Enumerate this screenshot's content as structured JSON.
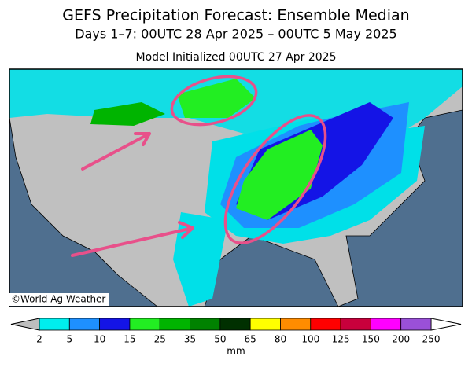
{
  "header": {
    "title": "GEFS Precipitation Forecast: Ensemble Median",
    "subtitle": "Days 1–7: 00UTC 28 Apr 2025 – 00UTC 5 May 2025",
    "initialized": "Model Initialized 00UTC 27 Apr 2025"
  },
  "map": {
    "credit": "©World Ag Weather"
  },
  "colorbar": {
    "ticks": [
      2,
      5,
      10,
      15,
      25,
      35,
      50,
      65,
      80,
      100,
      125,
      150,
      200,
      250
    ],
    "colors": [
      "#00eeee",
      "#1e90ff",
      "#1414e6",
      "#22ee22",
      "#00b400",
      "#008200",
      "#003000",
      "#ffff00",
      "#ff8c00",
      "#ff0000",
      "#c8003c",
      "#ff00ff",
      "#9a50d8"
    ],
    "under_color": "#bebebe",
    "over_color": "#ffffff",
    "unit": "mm"
  }
}
